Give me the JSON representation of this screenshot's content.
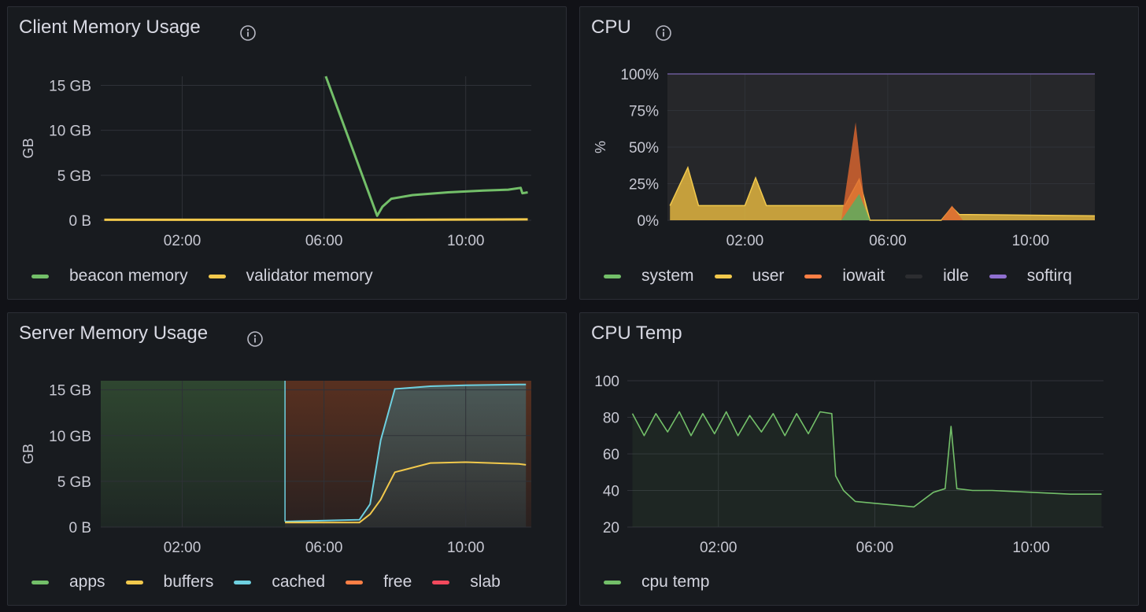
{
  "panels": {
    "client_memory": {
      "title": "Client Memory Usage",
      "y_axis_label": "GB",
      "y_ticks": [
        "15 GB",
        "10 GB",
        "5 GB",
        "0 B"
      ],
      "x_ticks": [
        "02:00",
        "06:00",
        "10:00"
      ],
      "legend": [
        {
          "label": "beacon memory",
          "color": "#73bf69"
        },
        {
          "label": "validator memory",
          "color": "#f2c94c"
        }
      ]
    },
    "cpu": {
      "title": "CPU",
      "y_axis_label": "%",
      "y_ticks": [
        "100%",
        "75%",
        "50%",
        "25%",
        "0%"
      ],
      "x_ticks": [
        "02:00",
        "06:00",
        "10:00"
      ],
      "legend": [
        {
          "label": "system",
          "color": "#73bf69"
        },
        {
          "label": "user",
          "color": "#f2c94c"
        },
        {
          "label": "iowait",
          "color": "#ff7f45"
        },
        {
          "label": "idle",
          "color": "#2c2d30"
        },
        {
          "label": "softirq",
          "color": "#8f6fd0"
        }
      ]
    },
    "server_memory": {
      "title": "Server Memory Usage",
      "y_axis_label": "GB",
      "y_ticks": [
        "15 GB",
        "10 GB",
        "5 GB",
        "0 B"
      ],
      "x_ticks": [
        "02:00",
        "06:00",
        "10:00"
      ],
      "legend": [
        {
          "label": "apps",
          "color": "#73bf69"
        },
        {
          "label": "buffers",
          "color": "#f2c94c"
        },
        {
          "label": "cached",
          "color": "#6ed0e0"
        },
        {
          "label": "free",
          "color": "#ff7f45"
        },
        {
          "label": "slab",
          "color": "#f2495c"
        }
      ]
    },
    "cpu_temp": {
      "title": "CPU Temp",
      "y_ticks": [
        "100",
        "80",
        "60",
        "40",
        "20"
      ],
      "x_ticks": [
        "02:00",
        "06:00",
        "10:00"
      ],
      "legend": [
        {
          "label": "cpu temp",
          "color": "#73bf69"
        }
      ]
    }
  },
  "chart_data": [
    {
      "type": "line",
      "title": "Client Memory Usage",
      "ylabel": "GB",
      "x_unit": "hour of day",
      "xlim": [
        23.8,
        11.9
      ],
      "ylim": [
        0,
        16
      ],
      "series": [
        {
          "name": "beacon memory",
          "x": [
            6.05,
            7.5,
            7.65,
            7.9,
            8.5,
            9.5,
            10.5,
            11.2,
            11.55,
            11.6,
            11.75
          ],
          "y": [
            16,
            0.5,
            1.5,
            2.4,
            2.8,
            3.1,
            3.3,
            3.4,
            3.6,
            3.0,
            3.1
          ]
        },
        {
          "name": "validator memory",
          "x": [
            23.8,
            7.5,
            11.75
          ],
          "y": [
            0.05,
            0.05,
            0.1
          ]
        }
      ]
    },
    {
      "type": "area",
      "title": "CPU",
      "ylabel": "%",
      "ylim": [
        0,
        100
      ],
      "series": [
        {
          "name": "system",
          "x": [
            4.7,
            5.2,
            5.5
          ],
          "y": [
            0,
            18,
            0
          ]
        },
        {
          "name": "user",
          "x": [
            23.9,
            0.4,
            0.7,
            2.0,
            2.3,
            2.6,
            4.8,
            5.2,
            5.5,
            7.5,
            7.8,
            8.0,
            11.8
          ],
          "y": [
            10,
            36,
            10,
            10,
            29,
            10,
            10,
            28,
            0,
            0,
            9,
            4,
            3
          ]
        },
        {
          "name": "iowait",
          "x": [
            4.7,
            5.1,
            5.4,
            7.5,
            7.8,
            8.1
          ],
          "y": [
            0,
            67,
            0,
            0,
            10,
            0
          ]
        },
        {
          "name": "idle",
          "x": [],
          "y": []
        },
        {
          "name": "softirq",
          "x": [],
          "y": []
        }
      ]
    },
    {
      "type": "area",
      "title": "Server Memory Usage",
      "ylabel": "GB",
      "ylim": [
        0,
        16
      ],
      "series": [
        {
          "name": "apps",
          "x": [
            23.8,
            4.9
          ],
          "y": [
            16,
            16
          ]
        },
        {
          "name": "buffers",
          "x": [
            4.9,
            7.0,
            7.3,
            7.6,
            8.0,
            9.0,
            10.0,
            11.5,
            11.7
          ],
          "y": [
            0.5,
            0.5,
            1.4,
            3.0,
            6.0,
            7.0,
            7.1,
            6.9,
            6.8
          ]
        },
        {
          "name": "cached",
          "x": [
            4.9,
            7.0,
            7.3,
            7.6,
            8.0,
            9.0,
            10.0,
            11.5,
            11.7
          ],
          "y": [
            0.6,
            0.8,
            2.5,
            9.5,
            15.1,
            15.4,
            15.5,
            15.6,
            15.6
          ]
        },
        {
          "name": "free",
          "x": [
            4.9,
            7.6,
            11.7
          ],
          "y": [
            16,
            16,
            16
          ]
        },
        {
          "name": "slab",
          "x": [],
          "y": []
        }
      ]
    },
    {
      "type": "line",
      "title": "CPU Temp",
      "ylim": [
        20,
        100
      ],
      "series": [
        {
          "name": "cpu temp",
          "x": [
            23.8,
            0.1,
            0.4,
            0.7,
            1.0,
            1.3,
            1.6,
            1.9,
            2.2,
            2.5,
            2.8,
            3.1,
            3.4,
            3.7,
            4.0,
            4.3,
            4.6,
            4.9,
            5.0,
            5.2,
            5.5,
            6.0,
            6.5,
            7.0,
            7.5,
            7.8,
            7.95,
            8.1,
            8.5,
            9.0,
            10.0,
            11.0,
            11.8
          ],
          "y": [
            82,
            70,
            82,
            72,
            83,
            70,
            82,
            71,
            83,
            70,
            81,
            72,
            82,
            70,
            82,
            71,
            83,
            82,
            48,
            40,
            34,
            33,
            32,
            31,
            39,
            41,
            75,
            41,
            40,
            40,
            39,
            38,
            38
          ]
        }
      ]
    }
  ]
}
